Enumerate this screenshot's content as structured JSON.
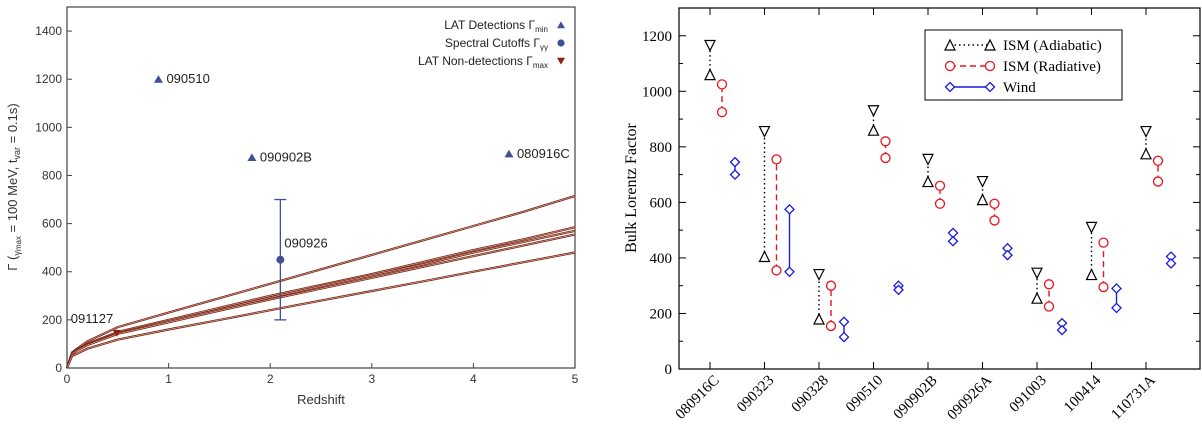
{
  "chart_data": [
    {
      "type": "scatter",
      "xlabel": "Redshift",
      "ylabel_main": "Γ (",
      "ylabel_sub": "γ",
      "ylabel_sub2": "max",
      "ylabel_mid": " = 100 MeV, t",
      "ylabel_sub3": "var",
      "ylabel_end": " = 0.1s)",
      "xlim": [
        0,
        5
      ],
      "ylim": [
        0,
        1500
      ],
      "x_ticks": [
        "0",
        "1",
        "2",
        "3",
        "4",
        "5"
      ],
      "y_ticks": [
        "0",
        "200",
        "400",
        "600",
        "800",
        "1000",
        "1200",
        "1400"
      ],
      "legend_position": "top-right",
      "legend": [
        {
          "label": "LAT Detections Γ",
          "sub": "min",
          "marker": "triangle-up",
          "color": "#3f4f9a"
        },
        {
          "label": "Spectral Cutoffs Γ",
          "sub": "γγ",
          "marker": "circle",
          "color": "#3f4f9a"
        },
        {
          "label": "LAT Non-detections Γ",
          "sub": "max",
          "marker": "triangle-down",
          "color": "#8b2010"
        }
      ],
      "detections": [
        {
          "label": "090510",
          "x": 0.9,
          "y": 1200
        },
        {
          "label": "090902B",
          "x": 1.82,
          "y": 875
        },
        {
          "label": "080916C",
          "x": 4.35,
          "y": 890
        }
      ],
      "cutoff": {
        "label": "090926",
        "x": 2.1,
        "y": 450,
        "ylow": 200,
        "yhigh": 700
      },
      "nondetection": {
        "label": "091127",
        "x": 0.49,
        "y": 145
      },
      "curves": [
        {
          "x": [
            0,
            0.05,
            0.1,
            0.2,
            0.5,
            1,
            1.5,
            2,
            2.5,
            3,
            3.5,
            4,
            4.5,
            5
          ],
          "y": [
            0,
            65,
            80,
            110,
            170,
            230,
            290,
            350,
            410,
            470,
            530,
            590,
            650,
            715
          ]
        },
        {
          "x": [
            0,
            0.05,
            0.1,
            0.2,
            0.5,
            1,
            1.5,
            2,
            2.5,
            3,
            3.5,
            4,
            4.5,
            5
          ],
          "y": [
            0,
            62,
            77,
            100,
            150,
            200,
            250,
            300,
            345,
            390,
            440,
            490,
            535,
            585
          ]
        },
        {
          "x": [
            0,
            0.05,
            0.1,
            0.2,
            0.5,
            1,
            1.5,
            2,
            2.5,
            3,
            3.5,
            4,
            4.5,
            5
          ],
          "y": [
            0,
            60,
            75,
            97,
            145,
            195,
            243,
            293,
            340,
            385,
            430,
            480,
            525,
            570
          ]
        },
        {
          "x": [
            0,
            0.05,
            0.1,
            0.2,
            0.5,
            1,
            1.5,
            2,
            2.5,
            3,
            3.5,
            4,
            4.5,
            5
          ],
          "y": [
            0,
            58,
            73,
            95,
            142,
            190,
            238,
            285,
            330,
            375,
            420,
            465,
            510,
            555
          ]
        },
        {
          "x": [
            0,
            0.05,
            0.1,
            0.2,
            0.5,
            1,
            1.5,
            2,
            2.5,
            3,
            3.5,
            4,
            4.5,
            5
          ],
          "y": [
            0,
            50,
            60,
            80,
            118,
            160,
            200,
            240,
            280,
            320,
            360,
            400,
            440,
            480
          ]
        }
      ]
    },
    {
      "type": "scatter",
      "ylabel": "Bulk Lorentz Factor",
      "ylim": [
        0,
        1300
      ],
      "y_ticks": [
        "0",
        "200",
        "400",
        "600",
        "800",
        "1000",
        "1200"
      ],
      "categories": [
        "080916C",
        "090323",
        "090328",
        "090510",
        "090902B",
        "090926A",
        "091003",
        "100414",
        "110731A"
      ],
      "legend_position": "top-center",
      "series": [
        {
          "name": "ISM (Adiabatic)",
          "color": "#000000",
          "style": "dotted",
          "marker": "triangle",
          "ranges": [
            [
              1060,
              1165
            ],
            [
              405,
              855
            ],
            [
              180,
              340
            ],
            [
              860,
              930
            ],
            [
              675,
              755
            ],
            [
              610,
              675
            ],
            [
              255,
              345
            ],
            [
              340,
              510
            ],
            [
              775,
              855
            ]
          ]
        },
        {
          "name": "ISM (Radiative)",
          "color": "#e8141e",
          "style": "dashed",
          "marker": "circle",
          "ranges": [
            [
              925,
              1025
            ],
            [
              355,
              755
            ],
            [
              155,
              300
            ],
            [
              760,
              820
            ],
            [
              595,
              660
            ],
            [
              535,
              595
            ],
            [
              225,
              305
            ],
            [
              295,
              455
            ],
            [
              675,
              750
            ]
          ]
        },
        {
          "name": "Wind",
          "color": "#1a1ae0",
          "style": "solid",
          "marker": "diamond",
          "ranges": [
            [
              700,
              745
            ],
            [
              350,
              575
            ],
            [
              115,
              170
            ],
            [
              285,
              300
            ],
            [
              460,
              490
            ],
            [
              410,
              435
            ],
            [
              140,
              165
            ],
            [
              220,
              290
            ],
            [
              380,
              405
            ]
          ]
        }
      ]
    }
  ]
}
